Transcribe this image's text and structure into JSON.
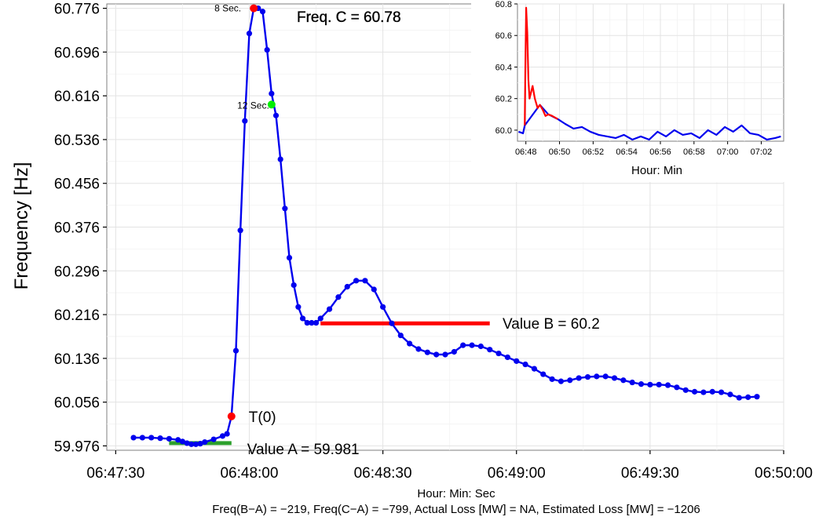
{
  "chart_data": [
    {
      "type": "line",
      "title": "",
      "xlabel": "Hour: Min: Sec",
      "ylabel": "Frequency [Hz]",
      "xlim": [
        "06:47:28",
        "06:50:00"
      ],
      "ylim": [
        59.968,
        60.784
      ],
      "x_ticks": [
        "06:47:30",
        "06:48:00",
        "06:48:30",
        "06:49:00",
        "06:49:30",
        "06:50:00"
      ],
      "y_ticks": [
        "59.976",
        "60.056",
        "60.136",
        "60.216",
        "60.296",
        "60.376",
        "60.456",
        "60.536",
        "60.616",
        "60.696",
        "60.776"
      ],
      "grid": true,
      "series": [
        {
          "name": "",
          "color": "#0000ee",
          "points": [
            [
              "06:47:34",
              59.991
            ],
            [
              "06:47:36",
              59.991
            ],
            [
              "06:47:38",
              59.991
            ],
            [
              "06:47:40",
              59.99
            ],
            [
              "06:47:42",
              59.989
            ],
            [
              "06:47:44",
              59.987
            ],
            [
              "06:47:45",
              59.984
            ],
            [
              "06:47:46",
              59.981
            ],
            [
              "06:47:47",
              59.979
            ],
            [
              "06:47:48",
              59.979
            ],
            [
              "06:47:49",
              59.98
            ],
            [
              "06:47:50",
              59.983
            ],
            [
              "06:47:52",
              59.988
            ],
            [
              "06:47:54",
              59.994
            ],
            [
              "06:47:55",
              59.998
            ],
            [
              "06:47:56",
              60.03
            ],
            [
              "06:47:57",
              60.15
            ],
            [
              "06:47:58",
              60.37
            ],
            [
              "06:47:59",
              60.57
            ],
            [
              "06:48:00",
              60.73
            ],
            [
              "06:48:01",
              60.776
            ],
            [
              "06:48:02",
              60.776
            ],
            [
              "06:48:03",
              60.77
            ],
            [
              "06:48:04",
              60.7
            ],
            [
              "06:48:05",
              60.62
            ],
            [
              "06:48:06",
              60.58
            ],
            [
              "06:48:07",
              60.5
            ],
            [
              "06:48:08",
              60.41
            ],
            [
              "06:48:09",
              60.32
            ],
            [
              "06:48:10",
              60.27
            ],
            [
              "06:48:11",
              60.23
            ],
            [
              "06:48:12",
              60.209
            ],
            [
              "06:48:13",
              60.201
            ],
            [
              "06:48:14",
              60.201
            ],
            [
              "06:48:15",
              60.201
            ],
            [
              "06:48:16",
              60.209
            ],
            [
              "06:48:18",
              60.226
            ],
            [
              "06:48:20",
              60.248
            ],
            [
              "06:48:22",
              60.267
            ],
            [
              "06:48:24",
              60.278
            ],
            [
              "06:48:26",
              60.278
            ],
            [
              "06:48:28",
              60.262
            ],
            [
              "06:48:30",
              60.23
            ],
            [
              "06:48:32",
              60.2
            ],
            [
              "06:48:34",
              60.178
            ],
            [
              "06:48:36",
              60.163
            ],
            [
              "06:48:38",
              60.153
            ],
            [
              "06:48:40",
              60.147
            ],
            [
              "06:48:42",
              60.143
            ],
            [
              "06:48:44",
              60.143
            ],
            [
              "06:48:46",
              60.148
            ],
            [
              "06:48:48",
              60.16
            ],
            [
              "06:48:50",
              60.16
            ],
            [
              "06:48:52",
              60.158
            ],
            [
              "06:48:54",
              60.152
            ],
            [
              "06:48:56",
              60.145
            ],
            [
              "06:48:58",
              60.138
            ],
            [
              "06:49:00",
              60.131
            ],
            [
              "06:49:02",
              60.125
            ],
            [
              "06:49:04",
              60.117
            ],
            [
              "06:49:06",
              60.107
            ],
            [
              "06:49:08",
              60.098
            ],
            [
              "06:49:10",
              60.094
            ],
            [
              "06:49:12",
              60.096
            ],
            [
              "06:49:14",
              60.1
            ],
            [
              "06:49:16",
              60.102
            ],
            [
              "06:49:18",
              60.103
            ],
            [
              "06:49:20",
              60.103
            ],
            [
              "06:49:22",
              60.1
            ],
            [
              "06:49:24",
              60.096
            ],
            [
              "06:49:26",
              60.092
            ],
            [
              "06:49:28",
              60.089
            ],
            [
              "06:49:30",
              60.088
            ],
            [
              "06:49:32",
              60.088
            ],
            [
              "06:49:34",
              60.087
            ],
            [
              "06:49:36",
              60.083
            ],
            [
              "06:49:38",
              60.078
            ],
            [
              "06:49:40",
              60.075
            ],
            [
              "06:49:42",
              60.074
            ],
            [
              "06:49:44",
              60.075
            ],
            [
              "06:49:46",
              60.074
            ],
            [
              "06:49:48",
              60.07
            ],
            [
              "06:49:50",
              60.064
            ],
            [
              "06:49:52",
              60.065
            ],
            [
              "06:49:54",
              60.066
            ]
          ]
        }
      ],
      "segments": [
        {
          "label": "Value A = 59.981",
          "value": 59.981,
          "from": "06:47:42",
          "to": "06:47:56",
          "color": "#2ca02c"
        },
        {
          "label": "Value B = 60.2",
          "value": 60.2,
          "from": "06:48:16",
          "to": "06:48:54",
          "color": "#ff0000"
        }
      ],
      "markers": [
        {
          "label": "T(0)",
          "x": "06:47:56",
          "y": 60.03,
          "color": "#ff0000"
        },
        {
          "label": "8 Sec.",
          "x": "06:48:01",
          "y": 60.776,
          "color": "#ff0000"
        },
        {
          "label": "12 Sec.",
          "x": "06:48:05",
          "y": 60.6,
          "color": "#00ee00"
        }
      ],
      "annotations": {
        "freq_c": "Freq. C = 60.78",
        "footer": "Freq(B−A) = −219, Freq(C−A) = −799, Actual Loss [MW] = NA, Estimated Loss [MW] = −1206"
      }
    },
    {
      "type": "line",
      "title": "",
      "xlabel": "Hour: Min",
      "ylabel": "",
      "xlim": [
        "06:47:30",
        "07:03:20"
      ],
      "ylim": [
        59.93,
        60.8
      ],
      "x_ticks": [
        "06:48",
        "06:50",
        "06:52",
        "06:54",
        "06:56",
        "06:58",
        "07:00",
        "07:02"
      ],
      "y_ticks": [
        "60.0",
        "60.2",
        "60.4",
        "60.6",
        "60.8"
      ],
      "grid": true,
      "series": [
        {
          "name": "",
          "color": "#0000ee",
          "points": [
            [
              "06:47:34",
              59.99
            ],
            [
              "06:47:50",
              59.98
            ],
            [
              "06:47:56",
              60.03
            ],
            [
              "06:48:50",
              60.16
            ],
            [
              "06:49:20",
              60.1
            ],
            [
              "06:49:54",
              60.07
            ],
            [
              "06:50:20",
              60.04
            ],
            [
              "06:50:50",
              60.01
            ],
            [
              "06:51:20",
              60.02
            ],
            [
              "06:51:50",
              59.99
            ],
            [
              "06:52:20",
              59.97
            ],
            [
              "06:52:50",
              59.96
            ],
            [
              "06:53:20",
              59.95
            ],
            [
              "06:53:50",
              59.97
            ],
            [
              "06:54:20",
              59.94
            ],
            [
              "06:54:50",
              59.96
            ],
            [
              "06:55:20",
              59.94
            ],
            [
              "06:55:50",
              59.99
            ],
            [
              "06:56:20",
              59.96
            ],
            [
              "06:56:50",
              60.0
            ],
            [
              "06:57:20",
              59.97
            ],
            [
              "06:57:50",
              59.98
            ],
            [
              "06:58:20",
              59.95
            ],
            [
              "06:58:50",
              60.0
            ],
            [
              "06:59:20",
              59.97
            ],
            [
              "06:59:50",
              60.02
            ],
            [
              "07:00:20",
              59.99
            ],
            [
              "07:00:50",
              60.03
            ],
            [
              "07:01:20",
              59.98
            ],
            [
              "07:01:50",
              59.97
            ],
            [
              "07:02:20",
              59.94
            ],
            [
              "07:02:50",
              59.95
            ],
            [
              "07:03:10",
              59.96
            ]
          ]
        },
        {
          "name": "",
          "color": "#ff0000",
          "points": [
            [
              "06:47:56",
              60.03
            ],
            [
              "06:47:58",
              60.37
            ],
            [
              "06:48:01",
              60.776
            ],
            [
              "06:48:05",
              60.62
            ],
            [
              "06:48:09",
              60.32
            ],
            [
              "06:48:13",
              60.2
            ],
            [
              "06:48:24",
              60.28
            ],
            [
              "06:48:32",
              60.2
            ],
            [
              "06:48:42",
              60.14
            ],
            [
              "06:48:50",
              60.16
            ],
            [
              "06:49:00",
              60.13
            ],
            [
              "06:49:10",
              60.09
            ],
            [
              "06:49:20",
              60.1
            ],
            [
              "06:49:34",
              60.09
            ],
            [
              "06:49:54",
              60.07
            ]
          ]
        }
      ]
    }
  ]
}
